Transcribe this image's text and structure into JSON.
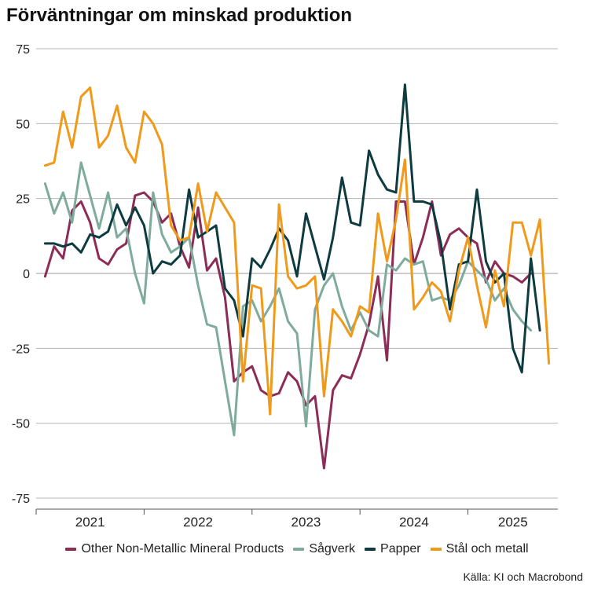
{
  "chart_data": {
    "type": "line",
    "title": "Förväntningar om minskad produktion",
    "source": "Källa: KI och Macrobond",
    "xlabel": "",
    "ylabel": "",
    "ylim": [
      -75,
      75
    ],
    "yticks": [
      75,
      50,
      25,
      0,
      -25,
      -50,
      -75
    ],
    "ytick_labels": [
      "75",
      "50",
      "25",
      "0",
      "-25",
      "-50",
      "-75"
    ],
    "x_year_labels": [
      "2021",
      "2022",
      "2023",
      "2024",
      "2025"
    ],
    "x_start": 2020.5,
    "x_end": 2025.333,
    "x_step_months": 1,
    "grid": true,
    "legend_position": "bottom",
    "series": [
      {
        "name": "Other Non-Metallic Mineral Products",
        "color": "#8b2d57",
        "values": [
          -1,
          9,
          5,
          21,
          24,
          17,
          5,
          3,
          8,
          10,
          26,
          27,
          24,
          17,
          20,
          9,
          2,
          22,
          1,
          5,
          -8,
          -36,
          -33,
          -31,
          -39,
          -41,
          -40,
          -33,
          -36,
          -44,
          -41,
          -65,
          -39,
          -34,
          -35,
          -27,
          -17,
          -1,
          -29,
          24,
          24,
          3,
          12,
          24,
          6,
          13,
          15,
          12,
          10,
          -3,
          4,
          0,
          -1,
          -3,
          0
        ]
      },
      {
        "name": "Sågverk",
        "color": "#7fab9c",
        "values": [
          30,
          20,
          27,
          17,
          37,
          26,
          15,
          27,
          12,
          15,
          0,
          -10,
          27,
          13,
          7,
          9,
          12,
          -4,
          -17,
          -18,
          -36,
          -54,
          -11,
          -9,
          -16,
          -11,
          -5,
          -16,
          -20,
          -51,
          -12,
          -4,
          0,
          -11,
          -19,
          -13,
          -19,
          -21,
          3,
          1,
          5,
          3,
          4,
          -9,
          -8,
          -9,
          -4,
          4,
          1,
          -2,
          -9,
          -5,
          -12,
          -16,
          -19
        ]
      },
      {
        "name": "Papper",
        "color": "#0d3b3f",
        "values": [
          10,
          10,
          9,
          10,
          7,
          13,
          12,
          14,
          23,
          16,
          22,
          16,
          0,
          4,
          3,
          6,
          28,
          12,
          14,
          16,
          -5,
          -9,
          -21,
          5,
          2,
          8,
          15,
          11,
          -1,
          20,
          9,
          -2,
          12,
          32,
          17,
          16,
          41,
          33,
          28,
          27,
          63,
          24,
          24,
          23,
          10,
          -12,
          3,
          4,
          28,
          4,
          -3,
          0,
          -25,
          -33,
          5,
          -19
        ]
      },
      {
        "name": "Stål och metall",
        "color": "#ef9a1a",
        "values": [
          36,
          37,
          54,
          42,
          59,
          62,
          42,
          46,
          56,
          42,
          37,
          54,
          50,
          43,
          16,
          11,
          12,
          30,
          14,
          27,
          22,
          17,
          -36,
          -4,
          -5,
          -47,
          23,
          -1,
          -5,
          -4,
          -1,
          -41,
          -12,
          -16,
          -21,
          -11,
          -13,
          20,
          4,
          18,
          38,
          -12,
          -8,
          -3,
          -6,
          -16,
          1,
          12,
          -4,
          -18,
          1,
          -11,
          17,
          17,
          6,
          18,
          -30
        ]
      }
    ]
  }
}
